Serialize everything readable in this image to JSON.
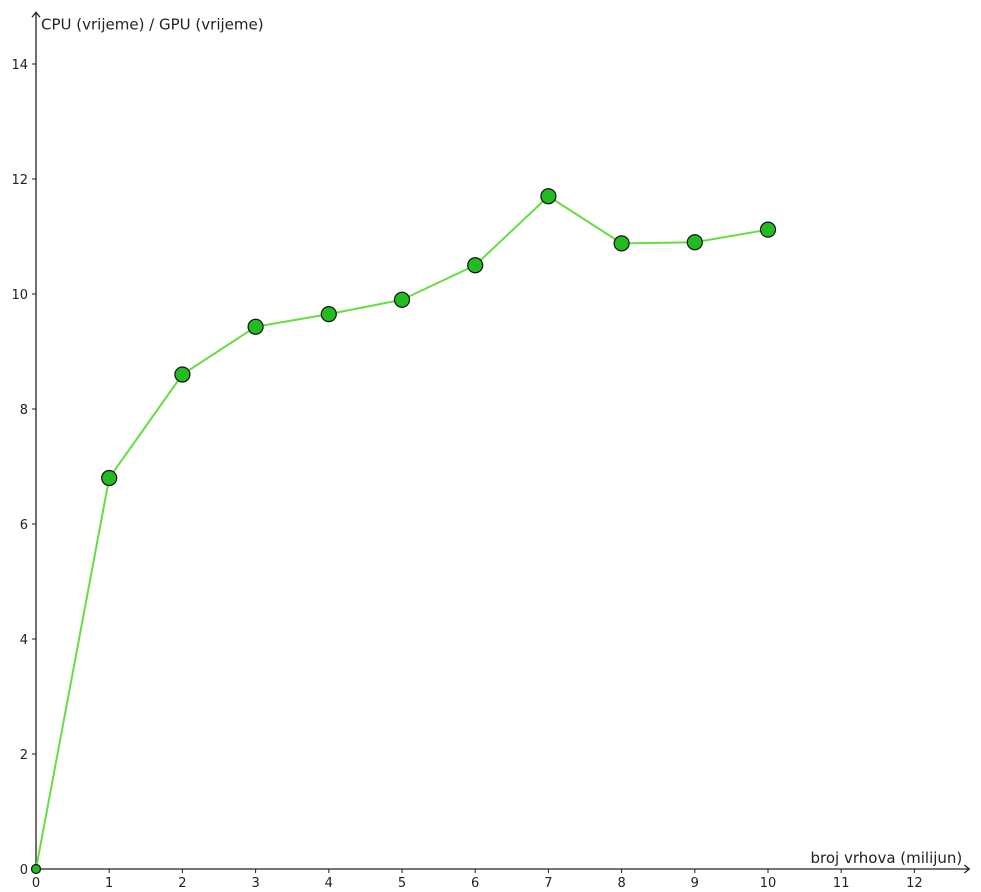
{
  "chart_data": {
    "type": "line",
    "ylabel": "CPU (vrijeme) / GPU (vrijeme)",
    "xlabel": "broj vrhova (milijun)",
    "xlim": [
      0,
      12.75
    ],
    "ylim": [
      0,
      14.9
    ],
    "x_ticks": [
      "0",
      "1",
      "2",
      "3",
      "4",
      "5",
      "6",
      "7",
      "8",
      "9",
      "10",
      "11",
      "12"
    ],
    "y_ticks": [
      "0",
      "2",
      "4",
      "6",
      "8",
      "10",
      "12",
      "14"
    ],
    "grid": false,
    "legend": "none",
    "series": [
      {
        "x": [
          0,
          1,
          2,
          3,
          4,
          5,
          6,
          7,
          8,
          9,
          10
        ],
        "y": [
          0,
          6.8,
          8.6,
          9.43,
          9.65,
          9.9,
          10.5,
          11.7,
          10.88,
          10.9,
          11.12
        ],
        "line_color": "#66dd44",
        "marker_fill": "#22bb22",
        "marker_edge": "#111111"
      }
    ]
  }
}
